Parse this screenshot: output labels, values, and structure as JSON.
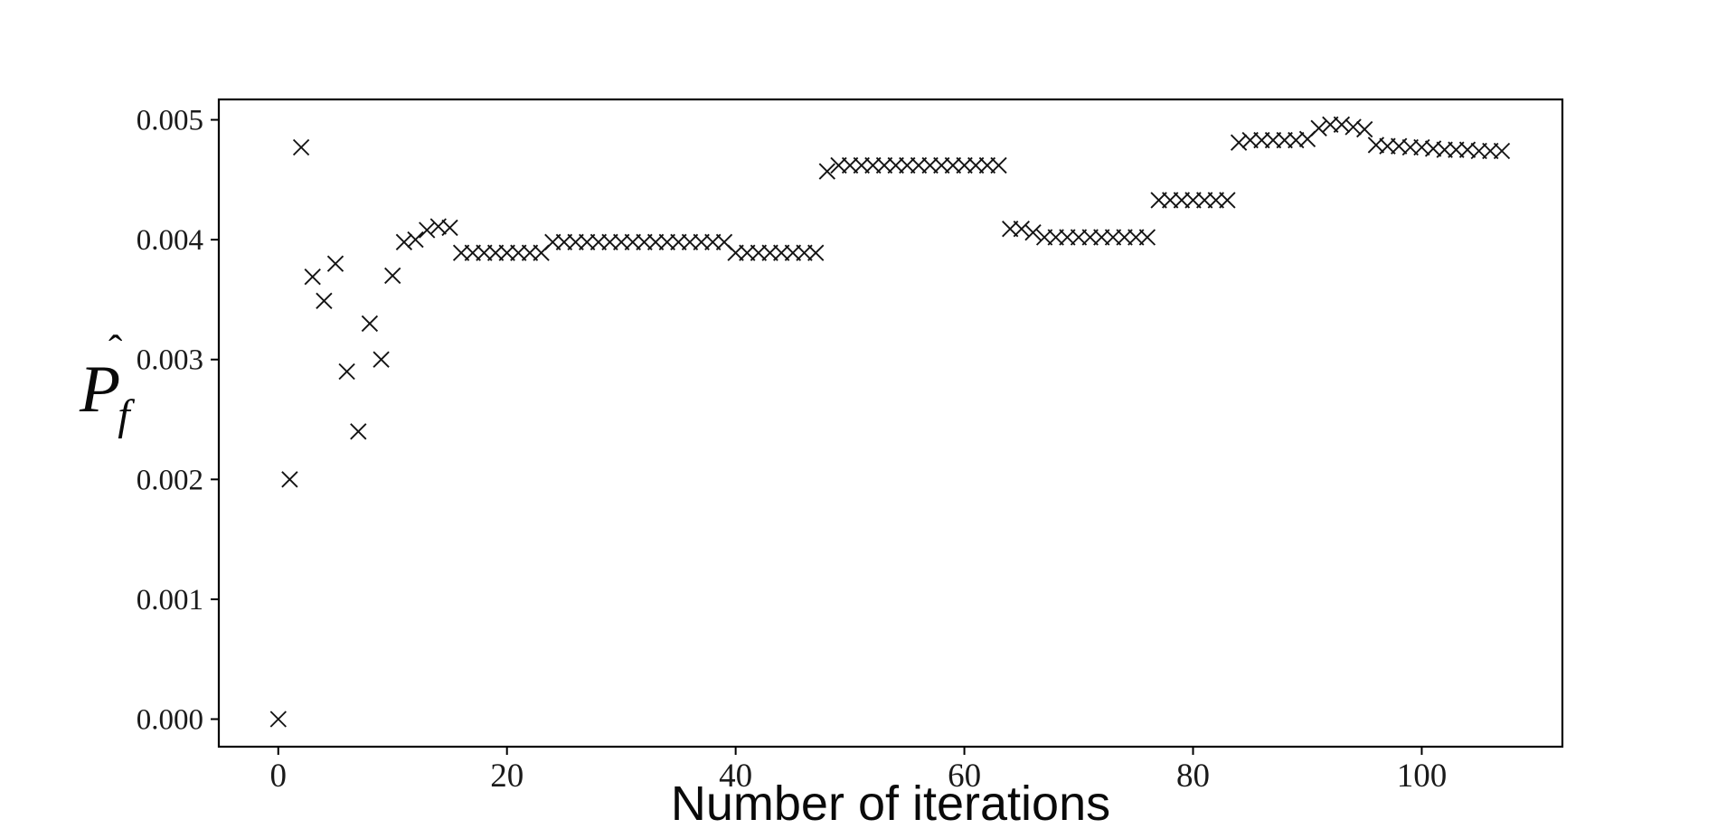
{
  "figure": {
    "background": "#ffffff",
    "axis_color": "#000000",
    "marker_color": "#141414"
  },
  "chart_data": {
    "type": "scatter",
    "marker": "x",
    "title": "",
    "xlabel": "Number of iterations",
    "ylabel": {
      "hat": "ˆ",
      "base": "P",
      "sub": "f"
    },
    "grid": false,
    "legend": null,
    "xlim": [
      -5.2,
      112.3
    ],
    "ylim": [
      -0.00023,
      0.00517
    ],
    "x_ticks": [
      0,
      20,
      40,
      60,
      80,
      100
    ],
    "x_tick_labels": [
      "0",
      "20",
      "40",
      "60",
      "80",
      "100"
    ],
    "y_ticks": [
      0.0,
      0.001,
      0.002,
      0.003,
      0.004,
      0.005
    ],
    "y_tick_labels": [
      "0.000",
      "0.001",
      "0.002",
      "0.003",
      "0.004",
      "0.005"
    ],
    "x": [
      0,
      1,
      2,
      3,
      4,
      5,
      6,
      7,
      8,
      9,
      10,
      11,
      12,
      13,
      14,
      15,
      16,
      17,
      18,
      19,
      20,
      21,
      22,
      23,
      24,
      25,
      26,
      27,
      28,
      29,
      30,
      31,
      32,
      33,
      34,
      35,
      36,
      37,
      38,
      39,
      40,
      41,
      42,
      43,
      44,
      45,
      46,
      47,
      48,
      49,
      50,
      51,
      52,
      53,
      54,
      55,
      56,
      57,
      58,
      59,
      60,
      61,
      62,
      63,
      64,
      65,
      66,
      67,
      68,
      69,
      70,
      71,
      72,
      73,
      74,
      75,
      76,
      77,
      78,
      79,
      80,
      81,
      82,
      83,
      84,
      85,
      86,
      87,
      88,
      89,
      90,
      91,
      92,
      93,
      94,
      95,
      96,
      97,
      98,
      99,
      100,
      101,
      102,
      103,
      104,
      105,
      106,
      107
    ],
    "y": [
      0.0,
      0.002,
      0.00477,
      0.00369,
      0.00349,
      0.0038,
      0.0029,
      0.0024,
      0.0033,
      0.003,
      0.0037,
      0.00398,
      0.004,
      0.00408,
      0.00411,
      0.0041,
      0.00389,
      0.00389,
      0.00389,
      0.00389,
      0.00389,
      0.00389,
      0.00389,
      0.00389,
      0.00398,
      0.00398,
      0.00398,
      0.00398,
      0.00398,
      0.00398,
      0.00398,
      0.00398,
      0.00398,
      0.00398,
      0.00398,
      0.00398,
      0.00398,
      0.00398,
      0.00398,
      0.00398,
      0.00389,
      0.00389,
      0.00389,
      0.00389,
      0.00389,
      0.00389,
      0.00389,
      0.00389,
      0.00457,
      0.00462,
      0.00462,
      0.00462,
      0.00462,
      0.00462,
      0.00462,
      0.00462,
      0.00462,
      0.00462,
      0.00462,
      0.00462,
      0.00462,
      0.00462,
      0.00462,
      0.00462,
      0.00409,
      0.00409,
      0.00406,
      0.00402,
      0.00402,
      0.00402,
      0.00402,
      0.00402,
      0.00402,
      0.00402,
      0.00402,
      0.00402,
      0.00402,
      0.00433,
      0.00433,
      0.00433,
      0.00433,
      0.00433,
      0.00433,
      0.00433,
      0.00481,
      0.00483,
      0.00483,
      0.00483,
      0.00483,
      0.00483,
      0.00484,
      0.00493,
      0.00496,
      0.00496,
      0.00494,
      0.00492,
      0.00479,
      0.00478,
      0.00478,
      0.00477,
      0.00477,
      0.00476,
      0.00475,
      0.00475,
      0.00475,
      0.00474,
      0.00474,
      0.00474
    ]
  }
}
